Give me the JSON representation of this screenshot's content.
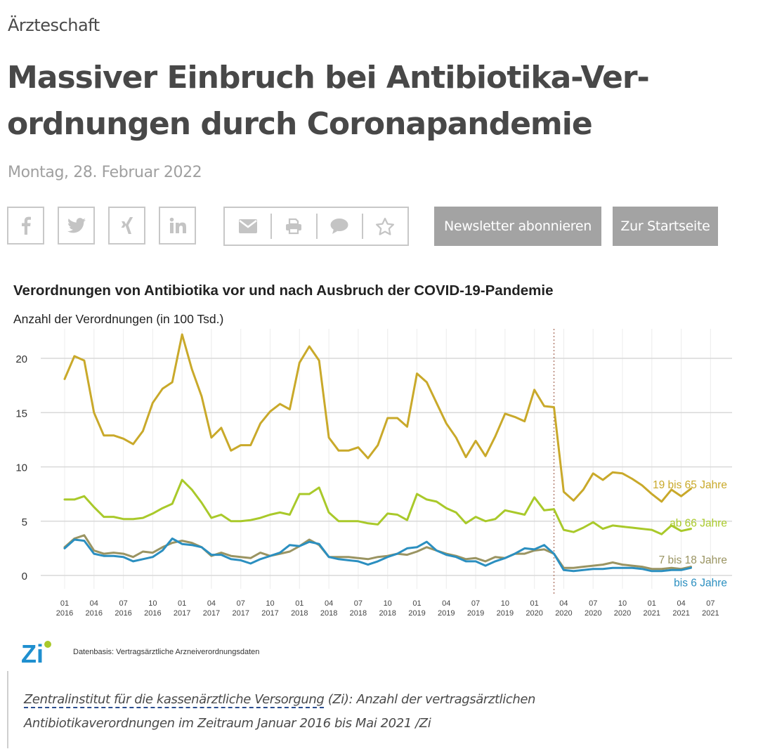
{
  "article": {
    "category": "Ärzteschaft",
    "headline": "Massiver Einbruch bei Antibiotika-Ver­ordnungen durch Coronapandemie",
    "date": "Montag, 28. Februar 2022"
  },
  "share": {
    "icons": [
      "facebook-icon",
      "twitter-icon",
      "xing-icon",
      "linkedin-icon"
    ],
    "tools": [
      "email-icon",
      "print-icon",
      "comment-icon",
      "bookmark-star-icon"
    ]
  },
  "buttons": {
    "newsletter": "Newsletter abonnieren",
    "home": "Zur Startseite"
  },
  "colors": {
    "age_19_65": "#c9a92a",
    "age_66_plus": "#a9c92a",
    "age_7_18": "#9a9462",
    "age_0_6": "#2b8fc0",
    "button_bg": "#a3a3a3",
    "icon_gray": "#c4c4c4"
  },
  "chart_data": {
    "type": "line",
    "title": "Verordnungen von Antibiotika vor und nach Ausbruch der COVID-19-Pandemie",
    "ylabel": "Anzahl der Verordnungen (in 100 Tsd.)",
    "xlabel": "",
    "ylim": [
      0,
      22.5
    ],
    "yticks": [
      0,
      5,
      10,
      15,
      20
    ],
    "grid": true,
    "x_start": "2016-01",
    "x_end": "2021-05",
    "xticks": [
      {
        "m": "01",
        "y": "2016"
      },
      {
        "m": "04",
        "y": "2016"
      },
      {
        "m": "07",
        "y": "2016"
      },
      {
        "m": "10",
        "y": "2016"
      },
      {
        "m": "01",
        "y": "2017"
      },
      {
        "m": "04",
        "y": "2017"
      },
      {
        "m": "07",
        "y": "2017"
      },
      {
        "m": "10",
        "y": "2017"
      },
      {
        "m": "01",
        "y": "2018"
      },
      {
        "m": "04",
        "y": "2018"
      },
      {
        "m": "07",
        "y": "2018"
      },
      {
        "m": "10",
        "y": "2018"
      },
      {
        "m": "01",
        "y": "2019"
      },
      {
        "m": "04",
        "y": "2019"
      },
      {
        "m": "07",
        "y": "2019"
      },
      {
        "m": "10",
        "y": "2019"
      },
      {
        "m": "01",
        "y": "2020"
      },
      {
        "m": "04",
        "y": "2020"
      },
      {
        "m": "07",
        "y": "2020"
      },
      {
        "m": "10",
        "y": "2020"
      },
      {
        "m": "01",
        "y": "2021"
      },
      {
        "m": "04",
        "y": "2021"
      },
      {
        "m": "07",
        "y": "2021"
      }
    ],
    "pandemic_marker": "2020-03",
    "legend_placement": "right, inline labels",
    "series": [
      {
        "name": "19 bis 65 Jahre",
        "color_key": "age_19_65",
        "values": [
          18.1,
          20.2,
          19.8,
          15.0,
          12.9,
          12.9,
          12.6,
          12.1,
          13.3,
          15.9,
          17.2,
          17.8,
          22.2,
          19.0,
          16.5,
          12.7,
          13.6,
          11.5,
          12.0,
          12.0,
          14.0,
          15.1,
          15.8,
          15.3,
          19.6,
          21.1,
          19.8,
          12.7,
          11.5,
          11.5,
          11.8,
          10.8,
          12.0,
          14.5,
          14.5,
          13.7,
          18.6,
          17.8,
          15.9,
          14.0,
          12.7,
          10.9,
          12.4,
          11.0,
          12.8,
          14.9,
          14.6,
          14.2,
          17.1,
          15.6,
          15.5,
          7.7,
          6.9,
          7.9,
          9.4,
          8.8,
          9.5,
          9.4,
          8.9,
          8.3,
          7.5,
          6.8,
          7.9,
          7.3,
          8.0
        ]
      },
      {
        "name": "ab 66 Jahre",
        "color_key": "age_66_plus",
        "values": [
          7.0,
          7.0,
          7.3,
          6.3,
          5.4,
          5.4,
          5.2,
          5.2,
          5.3,
          5.7,
          6.2,
          6.6,
          8.8,
          7.9,
          6.7,
          5.3,
          5.6,
          5.0,
          5.0,
          5.1,
          5.3,
          5.6,
          5.8,
          5.6,
          7.5,
          7.5,
          8.1,
          5.8,
          5.0,
          5.0,
          5.0,
          4.8,
          4.7,
          5.7,
          5.6,
          5.1,
          7.5,
          7.0,
          6.8,
          6.2,
          5.8,
          4.8,
          5.4,
          5.0,
          5.2,
          6.0,
          5.8,
          5.6,
          7.2,
          6.0,
          6.1,
          4.2,
          4.0,
          4.4,
          4.9,
          4.3,
          4.6,
          4.5,
          4.4,
          4.3,
          4.2,
          3.8,
          4.6,
          4.1,
          4.3
        ]
      },
      {
        "name": "7 bis 18 Jahre",
        "color_key": "age_7_18",
        "values": [
          2.6,
          3.4,
          3.7,
          2.3,
          2.0,
          2.1,
          2.0,
          1.7,
          2.2,
          2.1,
          2.6,
          3.0,
          3.2,
          3.0,
          2.6,
          1.8,
          2.1,
          1.8,
          1.7,
          1.6,
          2.1,
          1.8,
          2.0,
          2.2,
          2.7,
          3.3,
          2.8,
          1.7,
          1.7,
          1.7,
          1.6,
          1.5,
          1.7,
          1.8,
          2.0,
          1.9,
          2.2,
          2.6,
          2.3,
          2.0,
          1.8,
          1.5,
          1.6,
          1.3,
          1.7,
          1.6,
          2.0,
          2.0,
          2.3,
          2.4,
          2.0,
          0.7,
          0.7,
          0.8,
          0.9,
          1.0,
          1.2,
          1.0,
          0.9,
          0.8,
          0.6,
          0.6,
          0.7,
          0.6,
          0.8
        ]
      },
      {
        "name": "bis 6 Jahre",
        "color_key": "age_0_6",
        "values": [
          2.5,
          3.3,
          3.2,
          2.0,
          1.8,
          1.8,
          1.7,
          1.3,
          1.5,
          1.7,
          2.3,
          3.4,
          2.9,
          2.8,
          2.6,
          1.9,
          1.9,
          1.5,
          1.4,
          1.1,
          1.5,
          1.8,
          2.1,
          2.8,
          2.7,
          3.1,
          2.9,
          1.7,
          1.5,
          1.4,
          1.3,
          1.0,
          1.3,
          1.7,
          2.0,
          2.5,
          2.6,
          3.1,
          2.3,
          1.9,
          1.7,
          1.3,
          1.3,
          0.9,
          1.3,
          1.6,
          2.0,
          2.5,
          2.4,
          2.8,
          2.0,
          0.5,
          0.4,
          0.5,
          0.6,
          0.6,
          0.7,
          0.7,
          0.7,
          0.6,
          0.4,
          0.4,
          0.5,
          0.5,
          0.7
        ]
      }
    ],
    "source_note": "Datenbasis: Vertragsärztliche Arzneiverordnungsdaten",
    "logo_text": "Zi"
  },
  "caption": {
    "link": "Zentralinstitut für die kassenärztliche Versorgung",
    "text": " (Zi): Anzahl der vertragsärztlichen Antibiotikaverordnungen im Zeitraum Januar 2016 bis Mai 2021 /Zi"
  }
}
